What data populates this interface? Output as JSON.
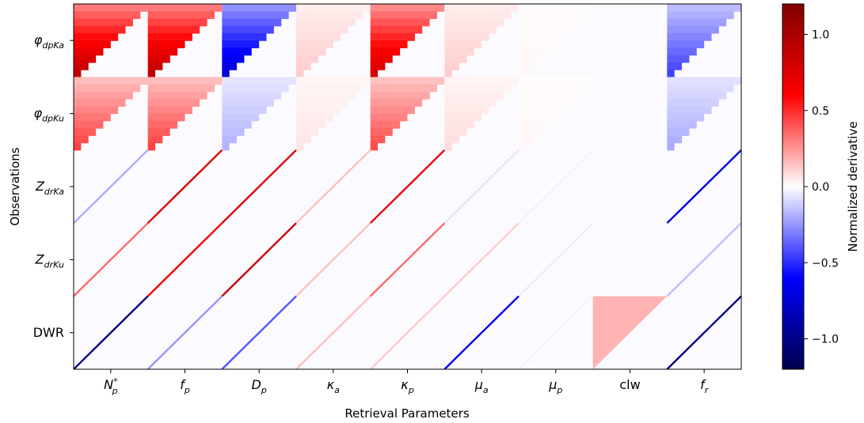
{
  "chart_data": {
    "type": "heatmap",
    "title": "",
    "xlabel": "Retrieval Parameters",
    "ylabel": "Observations",
    "x_categories": [
      "N_p^*",
      "f_p",
      "D_p",
      "κ_a",
      "κ_p",
      "μ_a",
      "μ_p",
      "clw",
      "f_r"
    ],
    "y_categories": [
      "φ_dpKa",
      "φ_dpKu",
      "Z_drKa",
      "Z_drKu",
      "DWR"
    ],
    "colorbar": {
      "label": "Normalized derivative",
      "colormap": "seismic",
      "range": [
        -1.2,
        1.2
      ],
      "ticks": [
        "1.0",
        "0.5",
        "0.0",
        "−0.5",
        "−1.0"
      ],
      "tick_values": [
        1.0,
        0.5,
        0.0,
        -0.5,
        -1.0
      ]
    },
    "blocks": [
      {
        "row": 0,
        "col": 0,
        "pattern": "upper-triangle",
        "value": 0.9
      },
      {
        "row": 0,
        "col": 1,
        "pattern": "upper-triangle",
        "value": 0.9
      },
      {
        "row": 0,
        "col": 2,
        "pattern": "upper-triangle",
        "value": -0.75
      },
      {
        "row": 0,
        "col": 3,
        "pattern": "upper-triangle",
        "value": 0.12
      },
      {
        "row": 0,
        "col": 4,
        "pattern": "upper-triangle",
        "value": 0.8
      },
      {
        "row": 0,
        "col": 5,
        "pattern": "upper-triangle",
        "value": 0.12
      },
      {
        "row": 0,
        "col": 6,
        "pattern": "upper-triangle",
        "value": 0.02
      },
      {
        "row": 0,
        "col": 7,
        "pattern": "none",
        "value": 0.0
      },
      {
        "row": 0,
        "col": 8,
        "pattern": "upper-triangle",
        "value": -0.45
      },
      {
        "row": 1,
        "col": 0,
        "pattern": "upper-triangle",
        "value": 0.45
      },
      {
        "row": 1,
        "col": 1,
        "pattern": "upper-triangle",
        "value": 0.45
      },
      {
        "row": 1,
        "col": 2,
        "pattern": "upper-triangle",
        "value": -0.18
      },
      {
        "row": 1,
        "col": 3,
        "pattern": "upper-triangle",
        "value": 0.06
      },
      {
        "row": 1,
        "col": 4,
        "pattern": "upper-triangle",
        "value": 0.42
      },
      {
        "row": 1,
        "col": 5,
        "pattern": "upper-triangle",
        "value": 0.08
      },
      {
        "row": 1,
        "col": 6,
        "pattern": "upper-triangle",
        "value": 0.02
      },
      {
        "row": 1,
        "col": 7,
        "pattern": "none",
        "value": 0.0
      },
      {
        "row": 1,
        "col": 8,
        "pattern": "upper-triangle",
        "value": -0.2
      },
      {
        "row": 2,
        "col": 0,
        "pattern": "diagonal",
        "value": -0.2
      },
      {
        "row": 2,
        "col": 1,
        "pattern": "diagonal",
        "value": 0.75
      },
      {
        "row": 2,
        "col": 2,
        "pattern": "diagonal",
        "value": 0.75
      },
      {
        "row": 2,
        "col": 3,
        "pattern": "diagonal",
        "value": 0.15
      },
      {
        "row": 2,
        "col": 4,
        "pattern": "diagonal",
        "value": 0.7
      },
      {
        "row": 2,
        "col": 5,
        "pattern": "diagonal",
        "value": -0.06
      },
      {
        "row": 2,
        "col": 6,
        "pattern": "diagonal",
        "value": -0.03
      },
      {
        "row": 2,
        "col": 7,
        "pattern": "none",
        "value": 0.0
      },
      {
        "row": 2,
        "col": 8,
        "pattern": "diagonal",
        "value": -0.7
      },
      {
        "row": 3,
        "col": 0,
        "pattern": "diagonal",
        "value": 0.35
      },
      {
        "row": 3,
        "col": 1,
        "pattern": "diagonal",
        "value": 0.65
      },
      {
        "row": 3,
        "col": 2,
        "pattern": "diagonal",
        "value": 0.85
      },
      {
        "row": 3,
        "col": 3,
        "pattern": "diagonal",
        "value": 0.15
      },
      {
        "row": 3,
        "col": 4,
        "pattern": "diagonal",
        "value": 0.35
      },
      {
        "row": 3,
        "col": 5,
        "pattern": "diagonal",
        "value": 0.12
      },
      {
        "row": 3,
        "col": 6,
        "pattern": "diagonal",
        "value": -0.05
      },
      {
        "row": 3,
        "col": 7,
        "pattern": "none",
        "value": 0.0
      },
      {
        "row": 3,
        "col": 8,
        "pattern": "diagonal",
        "value": -0.15
      },
      {
        "row": 4,
        "col": 0,
        "pattern": "diagonal",
        "value": -1.0
      },
      {
        "row": 4,
        "col": 1,
        "pattern": "diagonal",
        "value": -0.25
      },
      {
        "row": 4,
        "col": 2,
        "pattern": "diagonal",
        "value": -0.4
      },
      {
        "row": 4,
        "col": 3,
        "pattern": "diagonal",
        "value": 0.15
      },
      {
        "row": 4,
        "col": 4,
        "pattern": "diagonal",
        "value": 0.12
      },
      {
        "row": 4,
        "col": 5,
        "pattern": "diagonal",
        "value": -0.65
      },
      {
        "row": 4,
        "col": 6,
        "pattern": "diagonal",
        "value": -0.03
      },
      {
        "row": 4,
        "col": 7,
        "pattern": "lower-triangle",
        "value": 0.18
      },
      {
        "row": 4,
        "col": 8,
        "pattern": "diagonal",
        "value": -1.0
      }
    ]
  }
}
